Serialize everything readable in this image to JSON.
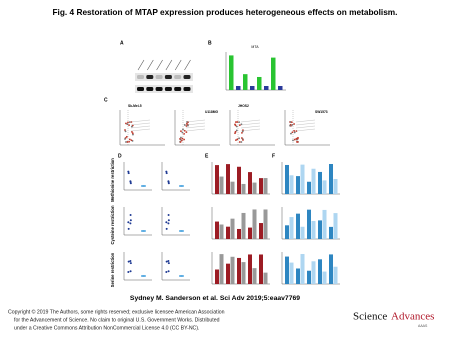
{
  "header": {
    "title": "Fig. 4 Restoration of MTAP expression produces heterogeneous effects on metabolism."
  },
  "figure": {
    "panels": [
      "A",
      "B",
      "C",
      "D",
      "E",
      "F"
    ],
    "panel_b_title": "MTA",
    "cell_lines": [
      "Sk-Mel-5",
      "U118MG",
      "JHOS2",
      "SW1573"
    ],
    "row_labels": [
      "Methionine restriction",
      "Cysteine restriction",
      "Serine restriction"
    ]
  },
  "caption": "Sydney M. Sanderson et al. Sci Adv 2019;5:eaav7769",
  "copyright": [
    "Copyright © 2019 The Authors, some rights reserved; exclusive licensee American Association",
    "for the Advancement of Science. No claim to original U.S. Government Works. Distributed",
    "under a Creative Commons Attribution NonCommercial License 4.0 (CC BY-NC)."
  ],
  "logo": {
    "main": "Science",
    "accent": "Advances",
    "sub": "AAAS"
  }
}
